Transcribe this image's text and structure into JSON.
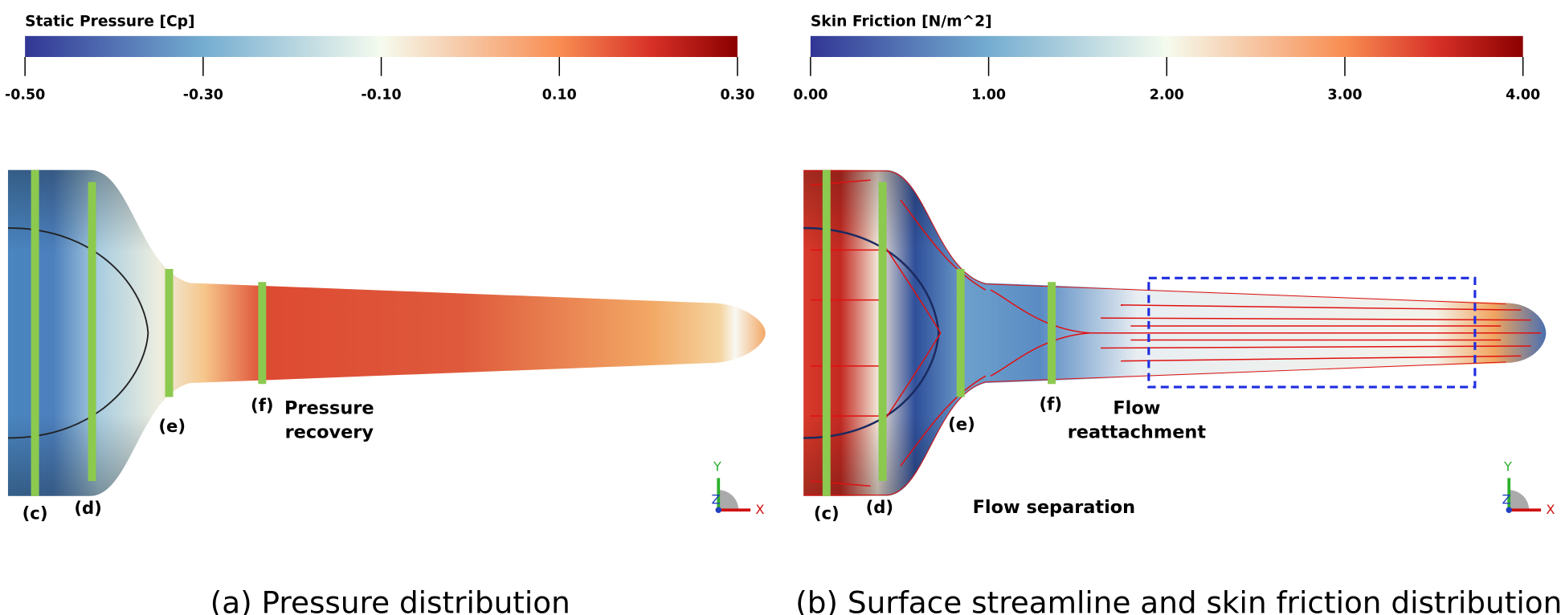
{
  "panels": [
    {
      "colorbar": {
        "title": "Static Pressure [Cp]",
        "ticks": [
          "-0.50",
          "-0.30",
          "-0.10",
          "0.10",
          "0.30"
        ]
      },
      "sections": [
        "(c)",
        "(d)",
        "(e)",
        "(f)"
      ],
      "annotations": [
        [
          "Pressure",
          "recovery"
        ]
      ],
      "axes": {
        "y": "Y",
        "x": "X",
        "z": "Z"
      },
      "caption": "(a) Pressure distribution"
    },
    {
      "colorbar": {
        "title": "Skin Friction [N/m^2]",
        "ticks": [
          "0.00",
          "1.00",
          "2.00",
          "3.00",
          "4.00"
        ]
      },
      "sections": [
        "(c)",
        "(d)",
        "(e)",
        "(f)"
      ],
      "annotations": [
        [
          "Flow separation"
        ],
        [
          "Flow",
          "reattachment"
        ]
      ],
      "axes": {
        "y": "Y",
        "x": "X",
        "z": "Z"
      },
      "caption": "(b) Surface streamline and skin friction distribution"
    }
  ]
}
